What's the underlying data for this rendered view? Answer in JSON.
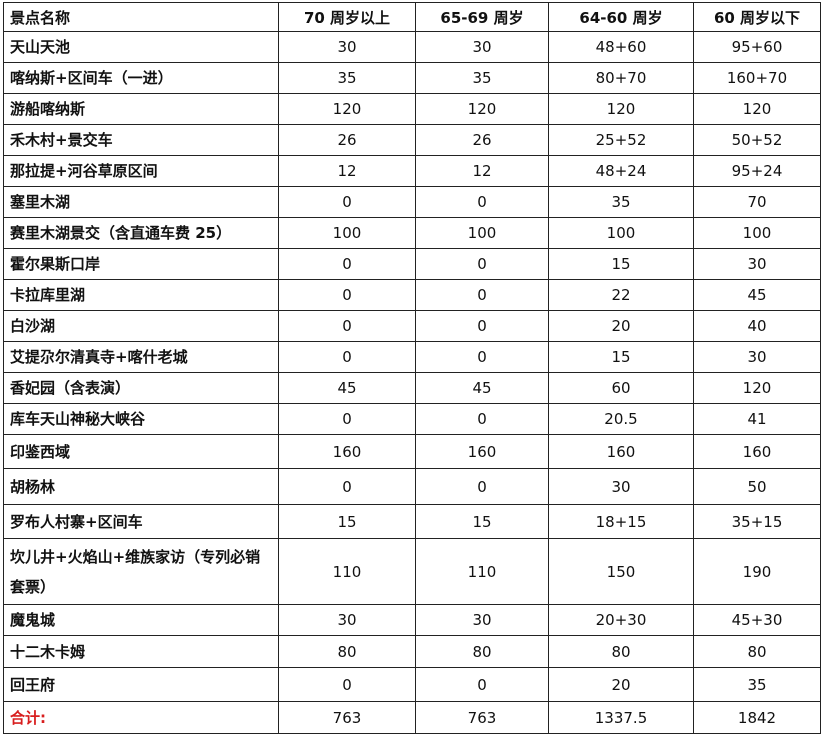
{
  "table": {
    "headers": [
      "景点名称",
      "70 周岁以上",
      "65-69 周岁",
      "64-60 周岁",
      "60 周岁以下"
    ],
    "rows": [
      [
        "天山天池",
        "30",
        "30",
        "48+60",
        "95+60"
      ],
      [
        "喀纳斯+区间车（一进）",
        "35",
        "35",
        "80+70",
        "160+70"
      ],
      [
        "游船喀纳斯",
        "120",
        "120",
        "120",
        "120"
      ],
      [
        "禾木村+景交车",
        "26",
        "26",
        "25+52",
        "50+52"
      ],
      [
        "那拉提+河谷草原区间",
        "12",
        "12",
        "48+24",
        "95+24"
      ],
      [
        "塞里木湖",
        "0",
        "0",
        "35",
        "70"
      ],
      [
        "赛里木湖景交（含直通车费 25）",
        "100",
        "100",
        "100",
        "100"
      ],
      [
        "霍尔果斯口岸",
        "0",
        "0",
        "15",
        "30"
      ],
      [
        "卡拉库里湖",
        "0",
        "0",
        "22",
        "45"
      ],
      [
        "白沙湖",
        "0",
        "0",
        "20",
        "40"
      ],
      [
        "艾提尕尔清真寺+喀什老城",
        "0",
        "0",
        "15",
        "30"
      ],
      [
        "香妃园（含表演）",
        "45",
        "45",
        "60",
        "120"
      ],
      [
        "库车天山神秘大峡谷",
        "0",
        "0",
        "20.5",
        "41"
      ],
      [
        "印鉴西域",
        "160",
        "160",
        "160",
        "160"
      ],
      [
        "胡杨林",
        "0",
        "0",
        "30",
        "50"
      ],
      [
        "罗布人村寨+区间车",
        "15",
        "15",
        "18+15",
        "35+15"
      ],
      [
        "坎儿井+火焰山+维族家访（专列必销套票）",
        "110",
        "110",
        "150",
        "190"
      ],
      [
        "魔鬼城",
        "30",
        "30",
        "20+30",
        "45+30"
      ],
      [
        "十二木卡姆",
        "80",
        "80",
        "80",
        "80"
      ],
      [
        "回王府",
        "0",
        "0",
        "20",
        "35"
      ]
    ],
    "total": [
      "合计:",
      "763",
      "763",
      "1337.5",
      "1842"
    ]
  },
  "colors": {
    "total_label": "#d81e1e",
    "border": "#222222"
  }
}
